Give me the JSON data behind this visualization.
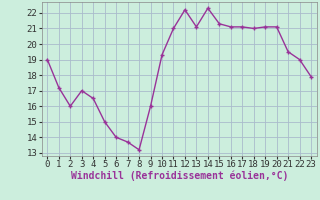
{
  "x": [
    0,
    1,
    2,
    3,
    4,
    5,
    6,
    7,
    8,
    9,
    10,
    11,
    12,
    13,
    14,
    15,
    16,
    17,
    18,
    19,
    20,
    21,
    22,
    23
  ],
  "y": [
    19.0,
    17.2,
    16.0,
    17.0,
    16.5,
    15.0,
    14.0,
    13.7,
    13.2,
    16.0,
    19.3,
    21.0,
    22.2,
    21.1,
    22.3,
    21.3,
    21.1,
    21.1,
    21.0,
    21.1,
    21.1,
    19.5,
    19.0,
    17.9
  ],
  "line_color": "#993399",
  "marker": "+",
  "marker_size": 3,
  "bg_color": "#cceedd",
  "grid_color": "#aabbcc",
  "xlabel": "Windchill (Refroidissement éolien,°C)",
  "xlabel_fontsize": 7,
  "ylim": [
    12.8,
    22.7
  ],
  "yticks": [
    13,
    14,
    15,
    16,
    17,
    18,
    19,
    20,
    21,
    22
  ],
  "xticks": [
    0,
    1,
    2,
    3,
    4,
    5,
    6,
    7,
    8,
    9,
    10,
    11,
    12,
    13,
    14,
    15,
    16,
    17,
    18,
    19,
    20,
    21,
    22,
    23
  ],
  "tick_fontsize": 6.5,
  "line_width": 1.0
}
